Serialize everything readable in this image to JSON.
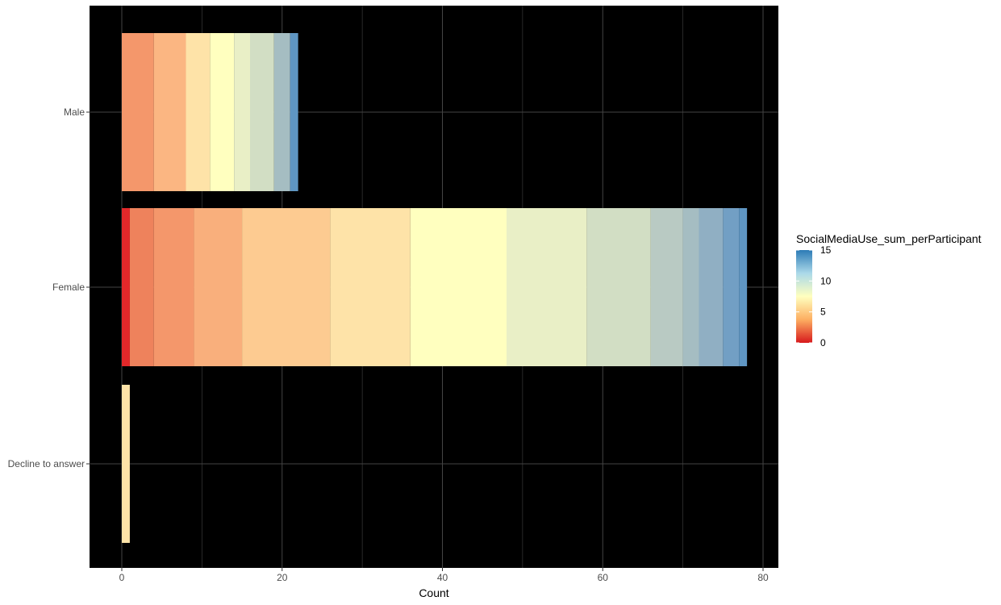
{
  "chart_data": {
    "type": "bar",
    "orientation": "horizontal",
    "stacked": true,
    "categories": [
      "Male",
      "Female",
      "Decline to answer"
    ],
    "xlabel": "Count",
    "ylabel": "",
    "xlim": [
      0,
      80
    ],
    "x_ticks": [
      0,
      20,
      40,
      60,
      80
    ],
    "grid": true,
    "background": "#000000",
    "grid_color": "#444444",
    "legend": {
      "title": "SocialMediaUse_sum_perParticipant",
      "placement": "right",
      "type": "continuous",
      "min": 0,
      "max": 15,
      "ticks": [
        0,
        5,
        10,
        15
      ],
      "colors": [
        "#d7191c",
        "#fdae61",
        "#ffffbf",
        "#abd9e9",
        "#2c7bb6"
      ]
    },
    "bars": [
      {
        "category": "Male",
        "segments": [
          {
            "value": 4,
            "color": "#f4976b"
          },
          {
            "value": 4,
            "color": "#fbb682"
          },
          {
            "value": 3,
            "color": "#fee3a8"
          },
          {
            "value": 3,
            "color": "#ffffbf"
          },
          {
            "value": 2,
            "color": "#e9efc6"
          },
          {
            "value": 3,
            "color": "#d2dec4"
          },
          {
            "value": 2,
            "color": "#a5bdc2"
          },
          {
            "value": 1,
            "color": "#5f96c3"
          }
        ],
        "total": 22
      },
      {
        "category": "Female",
        "segments": [
          {
            "value": 1,
            "color": "#e3282a"
          },
          {
            "value": 3,
            "color": "#ee825c"
          },
          {
            "value": 5,
            "color": "#f4976b"
          },
          {
            "value": 6,
            "color": "#f9af7c"
          },
          {
            "value": 11,
            "color": "#fdcb91"
          },
          {
            "value": 10,
            "color": "#fee3a8"
          },
          {
            "value": 12,
            "color": "#ffffbf"
          },
          {
            "value": 10,
            "color": "#e9efc6"
          },
          {
            "value": 8,
            "color": "#d2dec4"
          },
          {
            "value": 4,
            "color": "#b9cac3"
          },
          {
            "value": 2,
            "color": "#a5bdc2"
          },
          {
            "value": 3,
            "color": "#90afc3"
          },
          {
            "value": 2,
            "color": "#729fc4"
          },
          {
            "value": 1,
            "color": "#5f96c3"
          }
        ],
        "total": 78
      },
      {
        "category": "Decline to answer",
        "segments": [
          {
            "value": 1,
            "color": "#fee3a8"
          }
        ],
        "total": 1
      }
    ]
  }
}
